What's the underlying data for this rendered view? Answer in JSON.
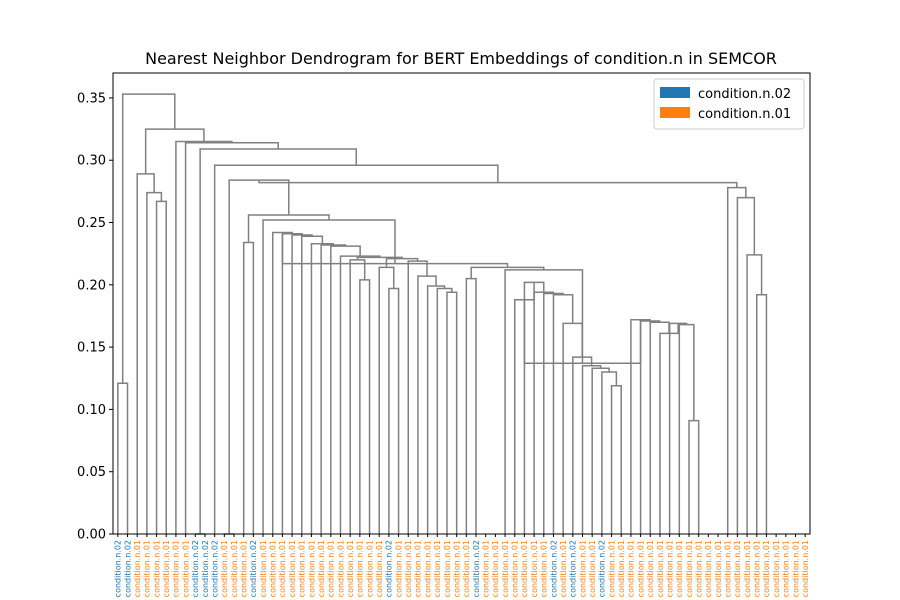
{
  "chart_data": {
    "type": "dendrogram",
    "title": "Nearest Neighbor Dendrogram for BERT Embeddings of condition.n in SEMCOR",
    "xlabel": "",
    "ylabel": "",
    "ylim": [
      0,
      0.37
    ],
    "yticks": [
      "0.00",
      "0.05",
      "0.10",
      "0.15",
      "0.20",
      "0.25",
      "0.30",
      "0.35"
    ],
    "grid": false,
    "legend_position": "top-right",
    "link_color": "#808080",
    "legend": [
      {
        "label": "condition.n.02",
        "color": "#1f77b4"
      },
      {
        "label": "condition.n.01",
        "color": "#ff7f0e"
      }
    ],
    "leaves": [
      {
        "label": "condition.n.02",
        "color": "#1f77b4"
      },
      {
        "label": "condition.n.02",
        "color": "#1f77b4"
      },
      {
        "label": "condition.n.01",
        "color": "#ff7f0e"
      },
      {
        "label": "condition.n.01",
        "color": "#ff7f0e"
      },
      {
        "label": "condition.n.01",
        "color": "#ff7f0e"
      },
      {
        "label": "condition.n.01",
        "color": "#ff7f0e"
      },
      {
        "label": "condition.n.01",
        "color": "#ff7f0e"
      },
      {
        "label": "condition.n.01",
        "color": "#ff7f0e"
      },
      {
        "label": "condition.n.02",
        "color": "#1f77b4"
      },
      {
        "label": "condition.n.02",
        "color": "#1f77b4"
      },
      {
        "label": "condition.n.02",
        "color": "#1f77b4"
      },
      {
        "label": "condition.n.01",
        "color": "#ff7f0e"
      },
      {
        "label": "condition.n.01",
        "color": "#ff7f0e"
      },
      {
        "label": "condition.n.01",
        "color": "#ff7f0e"
      },
      {
        "label": "condition.n.02",
        "color": "#1f77b4"
      },
      {
        "label": "condition.n.01",
        "color": "#ff7f0e"
      },
      {
        "label": "condition.n.01",
        "color": "#ff7f0e"
      },
      {
        "label": "condition.n.01",
        "color": "#ff7f0e"
      },
      {
        "label": "condition.n.01",
        "color": "#ff7f0e"
      },
      {
        "label": "condition.n.01",
        "color": "#ff7f0e"
      },
      {
        "label": "condition.n.01",
        "color": "#ff7f0e"
      },
      {
        "label": "condition.n.01",
        "color": "#ff7f0e"
      },
      {
        "label": "condition.n.01",
        "color": "#ff7f0e"
      },
      {
        "label": "condition.n.01",
        "color": "#ff7f0e"
      },
      {
        "label": "condition.n.01",
        "color": "#ff7f0e"
      },
      {
        "label": "condition.n.01",
        "color": "#ff7f0e"
      },
      {
        "label": "condition.n.01",
        "color": "#ff7f0e"
      },
      {
        "label": "condition.n.01",
        "color": "#ff7f0e"
      },
      {
        "label": "condition.n.02",
        "color": "#1f77b4"
      },
      {
        "label": "condition.n.01",
        "color": "#ff7f0e"
      },
      {
        "label": "condition.n.01",
        "color": "#ff7f0e"
      },
      {
        "label": "condition.n.01",
        "color": "#ff7f0e"
      },
      {
        "label": "condition.n.01",
        "color": "#ff7f0e"
      },
      {
        "label": "condition.n.01",
        "color": "#ff7f0e"
      },
      {
        "label": "condition.n.01",
        "color": "#ff7f0e"
      },
      {
        "label": "condition.n.01",
        "color": "#ff7f0e"
      },
      {
        "label": "condition.n.01",
        "color": "#ff7f0e"
      },
      {
        "label": "condition.n.02",
        "color": "#1f77b4"
      },
      {
        "label": "condition.n.01",
        "color": "#ff7f0e"
      },
      {
        "label": "condition.n.01",
        "color": "#ff7f0e"
      },
      {
        "label": "condition.n.01",
        "color": "#ff7f0e"
      },
      {
        "label": "condition.n.01",
        "color": "#ff7f0e"
      },
      {
        "label": "condition.n.01",
        "color": "#ff7f0e"
      },
      {
        "label": "condition.n.01",
        "color": "#ff7f0e"
      },
      {
        "label": "condition.n.01",
        "color": "#ff7f0e"
      },
      {
        "label": "condition.n.02",
        "color": "#1f77b4"
      },
      {
        "label": "condition.n.01",
        "color": "#ff7f0e"
      },
      {
        "label": "condition.n.02",
        "color": "#1f77b4"
      },
      {
        "label": "condition.n.01",
        "color": "#ff7f0e"
      },
      {
        "label": "condition.n.01",
        "color": "#ff7f0e"
      },
      {
        "label": "condition.n.02",
        "color": "#1f77b4"
      },
      {
        "label": "condition.n.01",
        "color": "#ff7f0e"
      },
      {
        "label": "condition.n.01",
        "color": "#ff7f0e"
      },
      {
        "label": "condition.n.01",
        "color": "#ff7f0e"
      },
      {
        "label": "condition.n.01",
        "color": "#ff7f0e"
      },
      {
        "label": "condition.n.01",
        "color": "#ff7f0e"
      },
      {
        "label": "condition.n.01",
        "color": "#ff7f0e"
      },
      {
        "label": "condition.n.01",
        "color": "#ff7f0e"
      },
      {
        "label": "condition.n.01",
        "color": "#ff7f0e"
      },
      {
        "label": "condition.n.01",
        "color": "#ff7f0e"
      },
      {
        "label": "condition.n.01",
        "color": "#ff7f0e"
      },
      {
        "label": "condition.n.01",
        "color": "#ff7f0e"
      },
      {
        "label": "condition.n.01",
        "color": "#ff7f0e"
      },
      {
        "label": "condition.n.01",
        "color": "#ff7f0e"
      },
      {
        "label": "condition.n.01",
        "color": "#ff7f0e"
      },
      {
        "label": "condition.n.01",
        "color": "#ff7f0e"
      },
      {
        "label": "condition.n.01",
        "color": "#ff7f0e"
      },
      {
        "label": "condition.n.01",
        "color": "#ff7f0e"
      },
      {
        "label": "condition.n.01",
        "color": "#ff7f0e"
      },
      {
        "label": "condition.n.01",
        "color": "#ff7f0e"
      },
      {
        "label": "condition.n.01",
        "color": "#ff7f0e"
      },
      {
        "label": "condition.n.01",
        "color": "#ff7f0e"
      }
    ],
    "merges": [
      {
        "left": 0,
        "right": 1,
        "height": 0.121
      },
      {
        "left": 8,
        "right": 9,
        "height": 0.0
      },
      {
        "left": 11,
        "right": 12,
        "height": 0.0
      },
      {
        "left": 4,
        "right": 5,
        "height": 0.267
      },
      {
        "left": 3,
        "right": 4,
        "height": 0.274
      },
      {
        "left": 2,
        "right": 3,
        "height": 0.289
      },
      {
        "left": 13,
        "right": 14,
        "height": 0.234
      },
      {
        "left": 25,
        "right": 26,
        "height": 0.204
      },
      {
        "left": 24,
        "right": 25,
        "height": 0.22
      },
      {
        "left": 28,
        "right": 29,
        "height": 0.197
      },
      {
        "left": 27,
        "right": 28,
        "height": 0.214
      },
      {
        "left": 34,
        "right": 35,
        "height": 0.194
      },
      {
        "left": 33,
        "right": 34,
        "height": 0.197
      },
      {
        "left": 32,
        "right": 33,
        "height": 0.199
      },
      {
        "left": 31,
        "right": 32,
        "height": 0.207
      },
      {
        "left": 30,
        "right": 31,
        "height": 0.219
      },
      {
        "left": 27,
        "right": 30,
        "height": 0.221
      },
      {
        "left": 24,
        "right": 27,
        "height": 0.222
      },
      {
        "left": 23,
        "right": 24,
        "height": 0.223
      },
      {
        "left": 22,
        "right": 23,
        "height": 0.231
      },
      {
        "left": 21,
        "right": 22,
        "height": 0.232
      },
      {
        "left": 20,
        "right": 21,
        "height": 0.233
      },
      {
        "left": 19,
        "right": 20,
        "height": 0.239
      },
      {
        "left": 18,
        "right": 19,
        "height": 0.24
      },
      {
        "left": 17,
        "right": 18,
        "height": 0.241
      },
      {
        "left": 16,
        "right": 17,
        "height": 0.242
      },
      {
        "left": 36,
        "right": 37,
        "height": 0.205
      },
      {
        "left": 51,
        "right": 52,
        "height": 0.119
      },
      {
        "left": 50,
        "right": 51,
        "height": 0.13
      },
      {
        "left": 49,
        "right": 50,
        "height": 0.133
      },
      {
        "left": 48,
        "right": 49,
        "height": 0.135
      },
      {
        "left": 47,
        "right": 48,
        "height": 0.142
      },
      {
        "left": 46,
        "right": 47,
        "height": 0.169
      },
      {
        "left": 45,
        "right": 46,
        "height": 0.192
      },
      {
        "left": 44,
        "right": 45,
        "height": 0.193
      },
      {
        "left": 43,
        "right": 44,
        "height": 0.194
      },
      {
        "left": 42,
        "right": 43,
        "height": 0.202
      },
      {
        "left": 41,
        "right": 42,
        "height": 0.188
      },
      {
        "left": 59,
        "right": 60,
        "height": 0.091
      },
      {
        "left": 58,
        "right": 59,
        "height": 0.168
      },
      {
        "left": 57,
        "right": 58,
        "height": 0.169
      },
      {
        "left": 56,
        "right": 57,
        "height": 0.161
      },
      {
        "left": 55,
        "right": 56,
        "height": 0.17
      },
      {
        "left": 54,
        "right": 55,
        "height": 0.171
      },
      {
        "left": 53,
        "right": 54,
        "height": 0.172
      },
      {
        "left": 52,
        "right": 53,
        "height": 0.137
      },
      {
        "left": 51,
        "right": 52,
        "height": 0.183
      },
      {
        "left": 50,
        "right": 51,
        "height": 0.204
      },
      {
        "left": 41,
        "right": 50,
        "height": 0.208
      },
      {
        "left": 40,
        "right": 41,
        "height": 0.212
      },
      {
        "left": 36,
        "right": 40,
        "height": 0.214
      },
      {
        "left": 35,
        "right": 36,
        "height": 0.217
      },
      {
        "left": 15,
        "right": 35,
        "height": 0.252
      },
      {
        "left": 14,
        "right": 15,
        "height": 0.256
      },
      {
        "left": 13,
        "right": 14,
        "height": 0.259
      },
      {
        "left": 12,
        "right": 13,
        "height": 0.284
      },
      {
        "left": 66,
        "right": 67,
        "height": 0.192
      },
      {
        "left": 65,
        "right": 66,
        "height": 0.224
      },
      {
        "left": 64,
        "right": 65,
        "height": 0.27
      },
      {
        "left": 63,
        "right": 64,
        "height": 0.278
      },
      {
        "left": 11,
        "right": 63,
        "height": 0.282
      },
      {
        "left": 10,
        "right": 11,
        "height": 0.296
      },
      {
        "left": 9,
        "right": 10,
        "height": 0.309
      },
      {
        "left": 8,
        "right": 9,
        "height": 0.311
      },
      {
        "left": 7,
        "right": 8,
        "height": 0.314
      },
      {
        "left": 6,
        "right": 7,
        "height": 0.315
      },
      {
        "left": 5,
        "right": 6,
        "height": 0.325
      },
      {
        "left": 4,
        "right": 5,
        "height": 0.328
      },
      {
        "left": 3,
        "right": 4,
        "height": 0.335
      },
      {
        "left": 2,
        "right": 3,
        "height": 0.34
      },
      {
        "left": 1,
        "right": 2,
        "height": 0.353
      }
    ]
  }
}
